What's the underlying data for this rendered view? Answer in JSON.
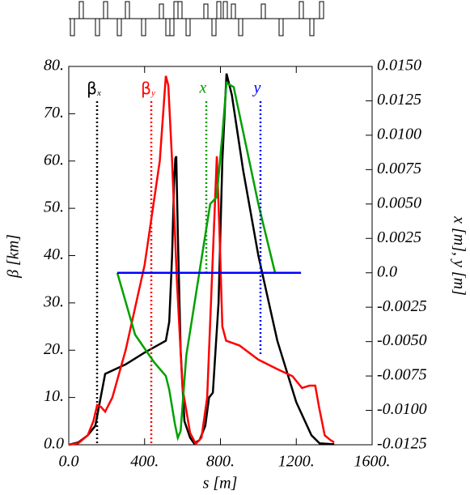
{
  "chart_data": {
    "type": "line",
    "xlabel": "s [m]",
    "ylabel": "β [km]",
    "y2label": "x [m], y [m]",
    "xlim": [
      0,
      1600
    ],
    "ylim": [
      0,
      80
    ],
    "y2lim": [
      -0.0125,
      0.015
    ],
    "xticks": [
      {
        "value": 0,
        "label": "0.0"
      },
      {
        "value": 400,
        "label": "400."
      },
      {
        "value": 800,
        "label": "800."
      },
      {
        "value": 1200,
        "label": "1200."
      },
      {
        "value": 1600,
        "label": "1600."
      }
    ],
    "yticks": [
      {
        "value": 0,
        "label": "0.0"
      },
      {
        "value": 10,
        "label": "10."
      },
      {
        "value": 20,
        "label": "20."
      },
      {
        "value": 30,
        "label": "30."
      },
      {
        "value": 40,
        "label": "40."
      },
      {
        "value": 50,
        "label": "50."
      },
      {
        "value": 60,
        "label": "60."
      },
      {
        "value": 70,
        "label": "70."
      },
      {
        "value": 80,
        "label": "80."
      }
    ],
    "y2ticks": [
      {
        "value": 0.015,
        "label": "0.0150"
      },
      {
        "value": 0.0125,
        "label": "0.0125"
      },
      {
        "value": 0.01,
        "label": "0.0100"
      },
      {
        "value": 0.0075,
        "label": "0.0075"
      },
      {
        "value": 0.005,
        "label": "0.0050"
      },
      {
        "value": 0.0025,
        "label": "0.0025"
      },
      {
        "value": 0,
        "label": "0.0"
      },
      {
        "value": -0.0025,
        "label": "-0.0025"
      },
      {
        "value": -0.005,
        "label": "-0.0050"
      },
      {
        "value": -0.0075,
        "label": "-0.0075"
      },
      {
        "value": -0.01,
        "label": "-0.0100"
      },
      {
        "value": -0.0125,
        "label": "-0.0125"
      }
    ],
    "series": [
      {
        "name": "βx",
        "color": "#000000",
        "x": [
          0,
          50,
          100,
          140,
          192,
          300,
          400,
          512,
          530,
          545,
          555,
          562,
          567,
          575,
          590,
          610,
          640,
          661,
          690,
          720,
          740,
          760,
          790,
          810,
          832,
          860,
          920,
          1000,
          1100,
          1200,
          1280,
          1323,
          1400
        ],
        "values": [
          0,
          0.5,
          2,
          4,
          15,
          17,
          19.5,
          22,
          26,
          40,
          55,
          60.5,
          61,
          45,
          20,
          5,
          1.5,
          0.3,
          1,
          4,
          10,
          11,
          30,
          60,
          78.5,
          74,
          58,
          40,
          22,
          9,
          2,
          0.3,
          0.1
        ]
      },
      {
        "name": "βy",
        "color": "#ff0000",
        "x": [
          0,
          50,
          100,
          130,
          150,
          170,
          192,
          230,
          300,
          400,
          480,
          512,
          525,
          545,
          570,
          600,
          640,
          670,
          700,
          730,
          750,
          770,
          781,
          795,
          810,
          830,
          900,
          1000,
          1100,
          1180,
          1230,
          1270,
          1300,
          1320,
          1350,
          1380,
          1400
        ],
        "values": [
          0,
          0.3,
          2,
          5,
          8.4,
          8,
          7,
          10,
          20,
          38,
          60,
          78,
          76,
          60,
          35,
          12,
          2.5,
          0.2,
          1.5,
          10,
          30,
          50,
          61,
          45,
          25,
          22,
          21,
          18,
          16,
          14.5,
          12,
          12.5,
          12.5,
          8,
          2,
          1,
          0.5
        ]
      },
      {
        "name": "x",
        "color": "#00a000",
        "axis": "y2",
        "x": [
          256,
          350,
          450,
          512,
          530,
          560,
          575,
          590,
          620,
          700,
          746,
          780,
          810,
          832,
          870,
          1000,
          1088,
          1130
        ],
        "values": [
          0,
          -0.0045,
          -0.0065,
          -0.0075,
          -0.0085,
          -0.011,
          -0.012,
          -0.0115,
          -0.006,
          0.001,
          0.005,
          0.0055,
          0.01,
          0.0138,
          0.0135,
          0.005,
          0,
          0
        ]
      },
      {
        "name": "y",
        "color": "#0000ff",
        "axis": "y2",
        "x": [
          256,
          1225
        ],
        "values": [
          0,
          0
        ]
      }
    ]
  }
}
